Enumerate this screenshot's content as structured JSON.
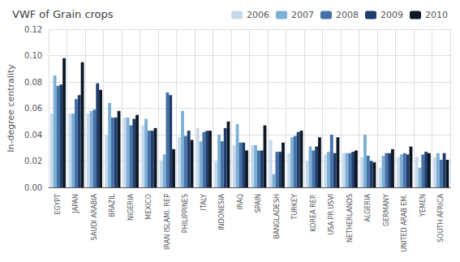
{
  "chart_data": {
    "type": "bar",
    "title": "VWF of Grain crops",
    "ylabel": "In-degree centrality",
    "categories": [
      "EGYPT",
      "JAPAN",
      "SAUDI ARABIA",
      "BRAZIL",
      "NIGERIA",
      "MEXICO",
      "IRAN ISLAMI. REP",
      "PHILIPPINES",
      "ITALY",
      "INDONESIA",
      "IRAQ",
      "SPAIN",
      "BANGLADESH",
      "TURKEY",
      "KOREA REP.",
      "USA PR.USVI",
      "NETHERLANDS",
      "ALGERIA",
      "GERMANY",
      "UNITED ARAB EM.",
      "YEMEN",
      "SOUTH AFRICA"
    ],
    "series": [
      {
        "name": "2006",
        "color": "#c6d9ec",
        "values": [
          0.056,
          0.056,
          0.056,
          0.04,
          0.053,
          0.047,
          0.02,
          0.038,
          0.045,
          0.02,
          0.032,
          0.032,
          0.036,
          0.026,
          0.02,
          0.025,
          0.026,
          0.023,
          0.015,
          0.023,
          0.023,
          0.023
        ]
      },
      {
        "name": "2007",
        "color": "#7bafd4",
        "values": [
          0.085,
          0.056,
          0.058,
          0.064,
          0.053,
          0.052,
          0.025,
          0.058,
          0.035,
          0.04,
          0.048,
          0.032,
          0.01,
          0.038,
          0.031,
          0.027,
          0.026,
          0.04,
          0.024,
          0.025,
          0.015,
          0.026
        ]
      },
      {
        "name": "2008",
        "color": "#4472a8",
        "values": [
          0.077,
          0.067,
          0.059,
          0.053,
          0.047,
          0.043,
          0.072,
          0.039,
          0.042,
          0.035,
          0.034,
          0.028,
          0.027,
          0.039,
          0.028,
          0.04,
          0.026,
          0.024,
          0.026,
          0.026,
          0.025,
          0.021
        ]
      },
      {
        "name": "2009",
        "color": "#1f3d6e",
        "values": [
          0.078,
          0.07,
          0.079,
          0.053,
          0.052,
          0.043,
          0.07,
          0.043,
          0.043,
          0.045,
          0.034,
          0.028,
          0.027,
          0.042,
          0.031,
          0.026,
          0.027,
          0.02,
          0.026,
          0.025,
          0.027,
          0.026
        ]
      },
      {
        "name": "2010",
        "color": "#0d1825",
        "values": [
          0.098,
          0.095,
          0.074,
          0.058,
          0.055,
          0.045,
          0.029,
          0.036,
          0.043,
          0.05,
          0.028,
          0.047,
          0.034,
          0.043,
          0.038,
          0.038,
          0.028,
          0.019,
          0.029,
          0.031,
          0.026,
          0.021
        ]
      }
    ],
    "ylim": [
      0.0,
      0.12
    ],
    "yticks": [
      {
        "value": 0.0,
        "label": "0.00"
      },
      0.02,
      0.04,
      0.06,
      0.08,
      {
        "value": 0.1,
        "label": "0.10"
      },
      0.12
    ],
    "grid": true,
    "legend": "upper right"
  }
}
